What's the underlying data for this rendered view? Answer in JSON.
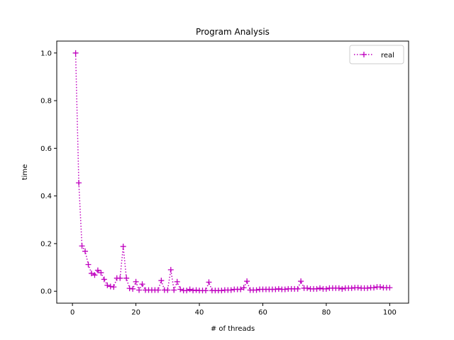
{
  "chart_data": {
    "type": "line",
    "title": "Program Analysis",
    "xlabel": "# of threads",
    "ylabel": "time",
    "xlim": [
      -4.95,
      105.95
    ],
    "ylim": [
      -0.05,
      1.05
    ],
    "xticks": [
      0,
      20,
      40,
      60,
      80,
      100
    ],
    "yticks": [
      0.0,
      0.2,
      0.4,
      0.6,
      0.8,
      1.0
    ],
    "xtick_labels": [
      "0",
      "20",
      "40",
      "60",
      "80",
      "100"
    ],
    "ytick_labels": [
      "0.0",
      "0.2",
      "0.4",
      "0.6",
      "0.8",
      "1.0"
    ],
    "grid": false,
    "legend_position": "top-right",
    "series": [
      {
        "name": "real",
        "color": "#bf00bf",
        "line_style": "dotted",
        "marker": "plus",
        "x": [
          1,
          2,
          3,
          4,
          5,
          6,
          7,
          8,
          9,
          10,
          11,
          12,
          13,
          14,
          15,
          16,
          17,
          18,
          19,
          20,
          21,
          22,
          23,
          24,
          25,
          26,
          27,
          28,
          29,
          30,
          31,
          32,
          33,
          34,
          35,
          36,
          37,
          38,
          39,
          40,
          41,
          42,
          43,
          44,
          45,
          46,
          47,
          48,
          49,
          50,
          51,
          52,
          53,
          54,
          55,
          56,
          57,
          58,
          59,
          60,
          61,
          62,
          63,
          64,
          65,
          66,
          67,
          68,
          69,
          70,
          71,
          72,
          73,
          74,
          75,
          76,
          77,
          78,
          79,
          80,
          81,
          82,
          83,
          84,
          85,
          86,
          87,
          88,
          89,
          90,
          91,
          92,
          93,
          94,
          95,
          96,
          97,
          98,
          99,
          100
        ],
        "values": [
          1.0,
          0.455,
          0.19,
          0.168,
          0.112,
          0.075,
          0.068,
          0.088,
          0.078,
          0.05,
          0.025,
          0.02,
          0.018,
          0.055,
          0.055,
          0.188,
          0.055,
          0.012,
          0.01,
          0.04,
          0.005,
          0.03,
          0.005,
          0.005,
          0.005,
          0.005,
          0.005,
          0.045,
          0.005,
          0.005,
          0.09,
          0.005,
          0.04,
          0.008,
          0.003,
          0.003,
          0.008,
          0.003,
          0.005,
          0.003,
          0.003,
          0.003,
          0.038,
          0.003,
          0.003,
          0.003,
          0.003,
          0.005,
          0.005,
          0.005,
          0.008,
          0.008,
          0.008,
          0.015,
          0.042,
          0.005,
          0.005,
          0.005,
          0.008,
          0.008,
          0.008,
          0.008,
          0.008,
          0.008,
          0.01,
          0.008,
          0.008,
          0.01,
          0.01,
          0.01,
          0.01,
          0.042,
          0.013,
          0.013,
          0.01,
          0.01,
          0.01,
          0.013,
          0.01,
          0.01,
          0.013,
          0.013,
          0.013,
          0.013,
          0.01,
          0.013,
          0.013,
          0.013,
          0.015,
          0.015,
          0.013,
          0.013,
          0.013,
          0.015,
          0.015,
          0.018,
          0.018,
          0.015,
          0.015,
          0.015
        ]
      }
    ]
  }
}
